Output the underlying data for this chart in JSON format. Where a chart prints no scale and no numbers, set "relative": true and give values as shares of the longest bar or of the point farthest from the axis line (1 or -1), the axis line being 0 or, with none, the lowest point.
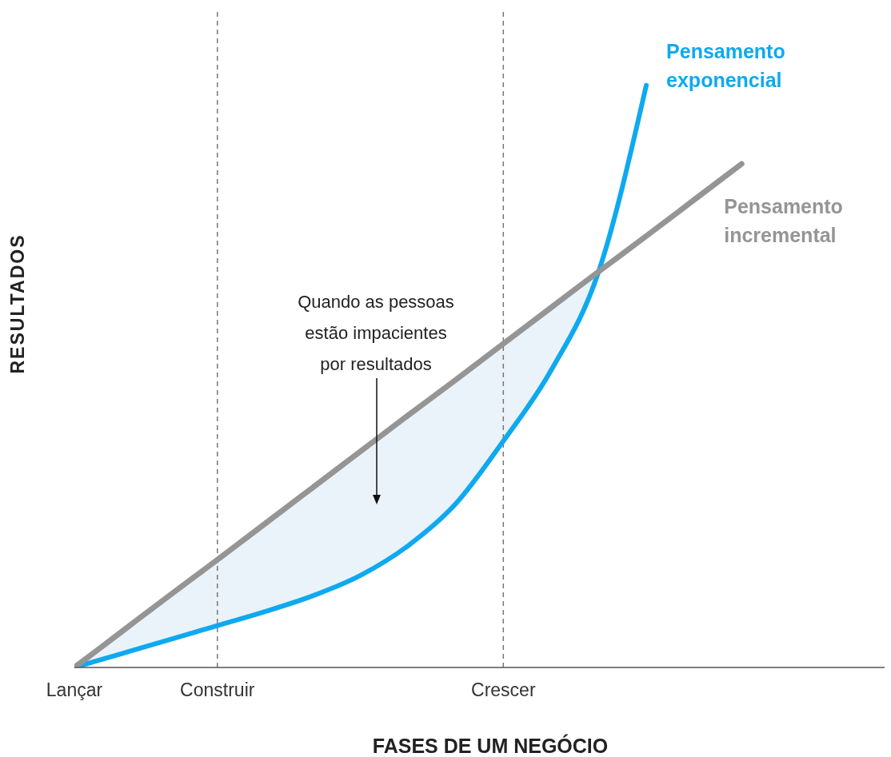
{
  "chart_data": {
    "type": "line",
    "relative": true,
    "xlabel": "FASES DE UM NEGÓCIO",
    "ylabel": "RESULTADOS",
    "categories": [
      "Lançar",
      null,
      null,
      "Construir",
      null,
      null,
      null,
      null,
      null,
      "Crescer",
      null,
      null,
      null,
      null,
      null,
      null,
      null,
      null
    ],
    "series": [
      {
        "name": "Pensamento incremental",
        "color": "#959595",
        "values": [
          0,
          0.062,
          0.124,
          0.185,
          0.247,
          0.309,
          0.371,
          0.433,
          0.494,
          0.556,
          0.618,
          0.68,
          0.741,
          0.803,
          0.865,
          null,
          null,
          null
        ]
      },
      {
        "name": "Pensamento exponencial",
        "color": "#0fa9ef",
        "values": [
          0,
          0.024,
          0.048,
          0.072,
          0.096,
          0.123,
          0.158,
          0.209,
          0.281,
          0.389,
          0.51,
          0.68,
          1,
          null,
          null,
          null,
          null,
          null
        ],
        "lower": [
          0,
          0.024,
          0.048,
          0.072,
          0.096,
          0.123,
          0.158,
          0.209,
          0.281,
          0.389,
          0.51,
          0.68,
          null,
          null,
          null,
          null,
          null,
          null
        ],
        "upper": [
          0,
          0.062,
          0.124,
          0.185,
          0.247,
          0.309,
          0.371,
          0.433,
          0.494,
          0.556,
          0.618,
          0.68,
          null,
          null,
          null,
          null,
          null,
          null
        ]
      }
    ],
    "ref_lines": [
      {
        "axis": "x",
        "value": "Construir",
        "color": "#777777",
        "line_style": "dashed"
      },
      {
        "axis": "x",
        "value": "Crescer",
        "color": "#777777",
        "line_style": "dashed"
      }
    ],
    "annotations": [
      "Quando as pessoas estão impacientes por resultados"
    ],
    "grid": false,
    "legend": false
  }
}
